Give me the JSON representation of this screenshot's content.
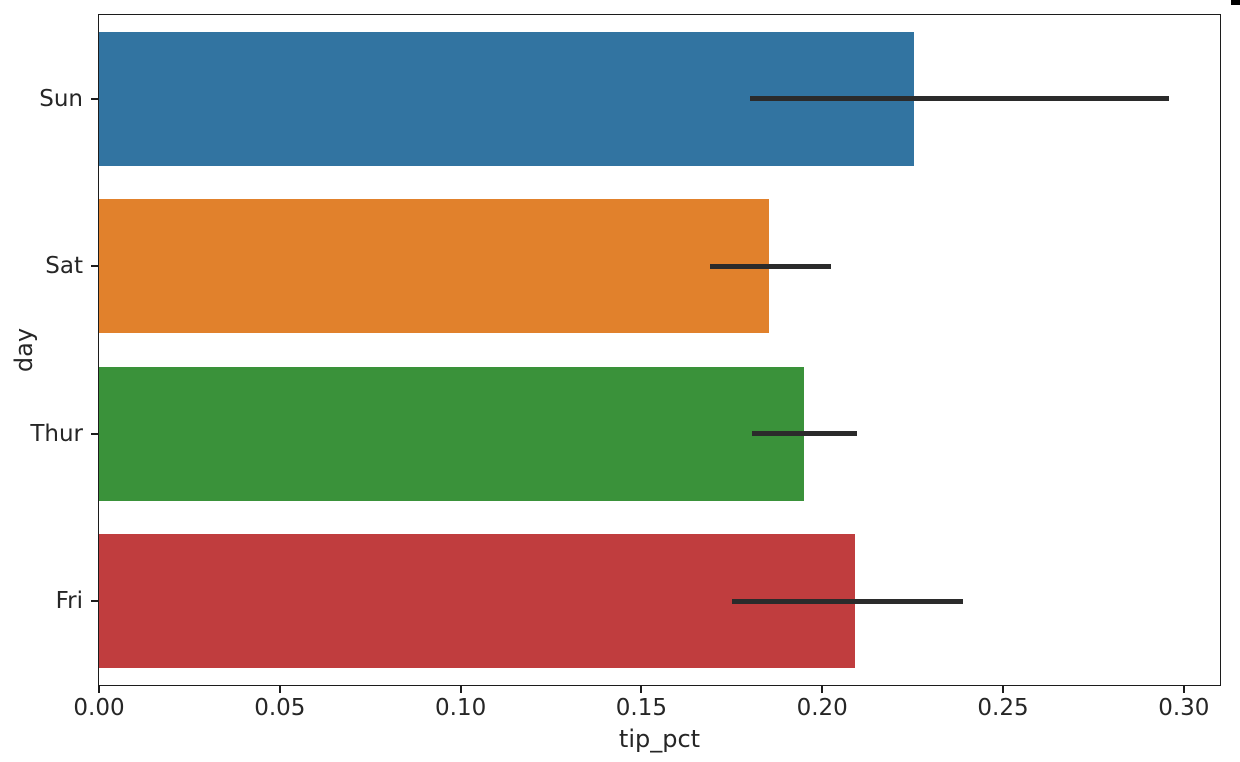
{
  "chart_data": {
    "type": "bar",
    "orientation": "horizontal",
    "xlabel": "tip_pct",
    "ylabel": "day",
    "categories": [
      "Sun",
      "Sat",
      "Thur",
      "Fri"
    ],
    "series": [
      {
        "name": "tip_pct",
        "values": [
          0.2255,
          0.1853,
          0.195,
          0.209
        ]
      }
    ],
    "error_intervals": [
      [
        0.18,
        0.296
      ],
      [
        0.169,
        0.2025
      ],
      [
        0.1805,
        0.2095
      ],
      [
        0.175,
        0.239
      ]
    ],
    "bar_colors": [
      "#3274a1",
      "#e1812c",
      "#3a923a",
      "#c03d3e"
    ],
    "error_bar_color": "#2b2b2b",
    "spine_color": "#1c1c1c",
    "text_color": "#262626",
    "background_color": "#ffffff",
    "xticks": {
      "labels": [
        "0.00",
        "0.05",
        "0.10",
        "0.15",
        "0.20",
        "0.25",
        "0.30"
      ],
      "values": [
        0,
        0.05,
        0.1,
        0.15,
        0.2,
        0.25,
        0.3
      ]
    },
    "xlim": [
      0,
      0.31
    ],
    "grid": false,
    "legend": null
  }
}
